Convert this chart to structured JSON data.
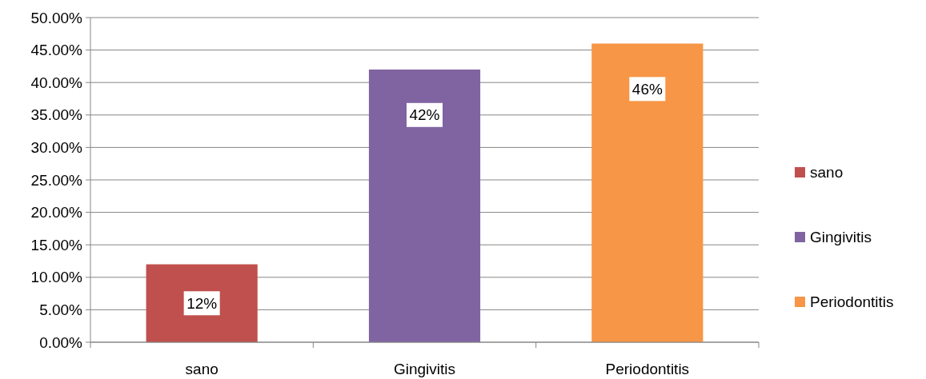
{
  "chart_data": {
    "type": "bar",
    "stacked": true,
    "categories": [
      "sano",
      "Gingivitis",
      "Periodontitis"
    ],
    "series": [
      {
        "name": "sano",
        "color": "#c0504d",
        "values": [
          12,
          null,
          null
        ],
        "value_labels": [
          "12%",
          null,
          null
        ]
      },
      {
        "name": "Gingivitis",
        "color": "#8064a2",
        "values": [
          null,
          42,
          null
        ],
        "value_labels": [
          null,
          "42%",
          null
        ]
      },
      {
        "name": "Periodontitis",
        "color": "#f79646",
        "values": [
          null,
          null,
          46
        ],
        "value_labels": [
          null,
          null,
          "46%"
        ]
      }
    ],
    "ylim": [
      0,
      50
    ],
    "yticks": [
      {
        "value": 0,
        "label": "0.00%"
      },
      {
        "value": 5,
        "label": "5.00%"
      },
      {
        "value": 10,
        "label": "10.00%"
      },
      {
        "value": 15,
        "label": "15.00%"
      },
      {
        "value": 20,
        "label": "20.00%"
      },
      {
        "value": 25,
        "label": "25.00%"
      },
      {
        "value": 30,
        "label": "30.00%"
      },
      {
        "value": 35,
        "label": "35.00%"
      },
      {
        "value": 40,
        "label": "40.00%"
      },
      {
        "value": 45,
        "label": "45.00%"
      },
      {
        "value": 50,
        "label": "50.00%"
      }
    ],
    "grid": "y",
    "legend": "right"
  }
}
